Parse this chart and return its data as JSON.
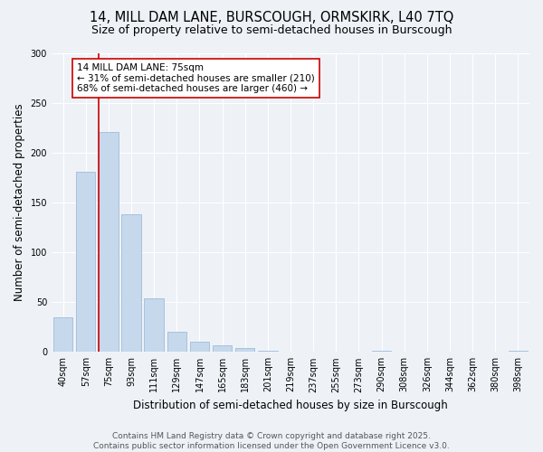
{
  "title_line1": "14, MILL DAM LANE, BURSCOUGH, ORMSKIRK, L40 7TQ",
  "title_line2": "Size of property relative to semi-detached houses in Burscough",
  "xlabel": "Distribution of semi-detached houses by size in Burscough",
  "ylabel": "Number of semi-detached properties",
  "categories": [
    "40sqm",
    "57sqm",
    "75sqm",
    "93sqm",
    "111sqm",
    "129sqm",
    "147sqm",
    "165sqm",
    "183sqm",
    "201sqm",
    "219sqm",
    "237sqm",
    "255sqm",
    "273sqm",
    "290sqm",
    "308sqm",
    "326sqm",
    "344sqm",
    "362sqm",
    "380sqm",
    "398sqm"
  ],
  "values": [
    35,
    181,
    221,
    138,
    54,
    20,
    10,
    7,
    4,
    1,
    0,
    0,
    0,
    0,
    1,
    0,
    0,
    0,
    0,
    0,
    1
  ],
  "bar_color": "#c5d8ec",
  "bar_edge_color": "#a0bcd8",
  "vline_index": 2,
  "vline_color": "#cc0000",
  "annotation_line1": "14 MILL DAM LANE: 75sqm",
  "annotation_line2": "← 31% of semi-detached houses are smaller (210)",
  "annotation_line3": "68% of semi-detached houses are larger (460) →",
  "annotation_box_color": "#ffffff",
  "annotation_box_edge": "#cc0000",
  "ylim": [
    0,
    300
  ],
  "yticks": [
    0,
    50,
    100,
    150,
    200,
    250,
    300
  ],
  "background_color": "#eef2f7",
  "grid_color": "#ffffff",
  "footer_line1": "Contains HM Land Registry data © Crown copyright and database right 2025.",
  "footer_line2": "Contains public sector information licensed under the Open Government Licence v3.0.",
  "title_fontsize": 10.5,
  "subtitle_fontsize": 9,
  "axis_label_fontsize": 8.5,
  "tick_fontsize": 7,
  "annotation_fontsize": 7.5,
  "footer_fontsize": 6.5
}
